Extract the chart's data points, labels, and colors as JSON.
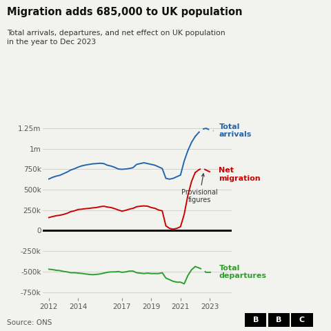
{
  "title": "Migration adds 685,000 to UK population",
  "subtitle": "Total arrivals, departures, and net effect on UK population\nin the year to Dec 2023",
  "source": "Source: ONS",
  "background_color": "#f2f2ee",
  "ylim": [
    -820000,
    1400000
  ],
  "yticks": [
    -750000,
    -500000,
    -250000,
    0,
    250000,
    500000,
    750000,
    1000000,
    1250000
  ],
  "ytick_labels": [
    "-750k",
    "-500k",
    "-250k",
    "0",
    "250k",
    "500k",
    "750k",
    "1m",
    "1.25m"
  ],
  "arrivals_color": "#2166ac",
  "net_color": "#cc0000",
  "departures_color": "#2ca02c",
  "zero_line_color": "#111111",
  "years": [
    2012.0,
    2012.25,
    2012.5,
    2012.75,
    2013.0,
    2013.25,
    2013.5,
    2013.75,
    2014.0,
    2014.25,
    2014.5,
    2014.75,
    2015.0,
    2015.25,
    2015.5,
    2015.75,
    2016.0,
    2016.25,
    2016.5,
    2016.75,
    2017.0,
    2017.25,
    2017.5,
    2017.75,
    2018.0,
    2018.25,
    2018.5,
    2018.75,
    2019.0,
    2019.25,
    2019.5,
    2019.75,
    2020.0,
    2020.25,
    2020.5,
    2020.75,
    2021.0,
    2021.25,
    2021.5,
    2021.75,
    2022.0,
    2022.25,
    2022.5,
    2022.75,
    2023.0,
    2023.25
  ],
  "arrivals": [
    630000,
    650000,
    665000,
    675000,
    695000,
    715000,
    740000,
    755000,
    775000,
    790000,
    800000,
    808000,
    815000,
    818000,
    822000,
    818000,
    798000,
    788000,
    772000,
    752000,
    748000,
    752000,
    758000,
    768000,
    808000,
    818000,
    828000,
    818000,
    808000,
    798000,
    778000,
    758000,
    638000,
    628000,
    638000,
    658000,
    678000,
    848000,
    975000,
    1075000,
    1148000,
    1198000,
    1238000,
    1248000,
    1228000,
    1218000
  ],
  "net": [
    160000,
    172000,
    182000,
    188000,
    198000,
    212000,
    232000,
    242000,
    258000,
    262000,
    268000,
    272000,
    278000,
    282000,
    292000,
    298000,
    288000,
    282000,
    268000,
    252000,
    238000,
    248000,
    262000,
    272000,
    292000,
    298000,
    302000,
    298000,
    282000,
    272000,
    252000,
    242000,
    58000,
    28000,
    18000,
    28000,
    48000,
    198000,
    428000,
    598000,
    708000,
    742000,
    764000,
    738000,
    718000,
    685000
  ],
  "departures": [
    -470000,
    -475000,
    -483000,
    -487000,
    -497000,
    -503000,
    -513000,
    -513000,
    -517000,
    -522000,
    -528000,
    -533000,
    -537000,
    -533000,
    -528000,
    -518000,
    -508000,
    -503000,
    -503000,
    -498000,
    -508000,
    -503000,
    -493000,
    -493000,
    -513000,
    -518000,
    -523000,
    -518000,
    -523000,
    -523000,
    -523000,
    -513000,
    -578000,
    -598000,
    -618000,
    -628000,
    -628000,
    -648000,
    -548000,
    -478000,
    -438000,
    -453000,
    -474000,
    -508000,
    -508000,
    -505000
  ],
  "provisional_split_year": 2022.0,
  "xlim": [
    2011.6,
    2024.5
  ],
  "xticks": [
    2012,
    2014,
    2017,
    2019,
    2021,
    2023
  ]
}
